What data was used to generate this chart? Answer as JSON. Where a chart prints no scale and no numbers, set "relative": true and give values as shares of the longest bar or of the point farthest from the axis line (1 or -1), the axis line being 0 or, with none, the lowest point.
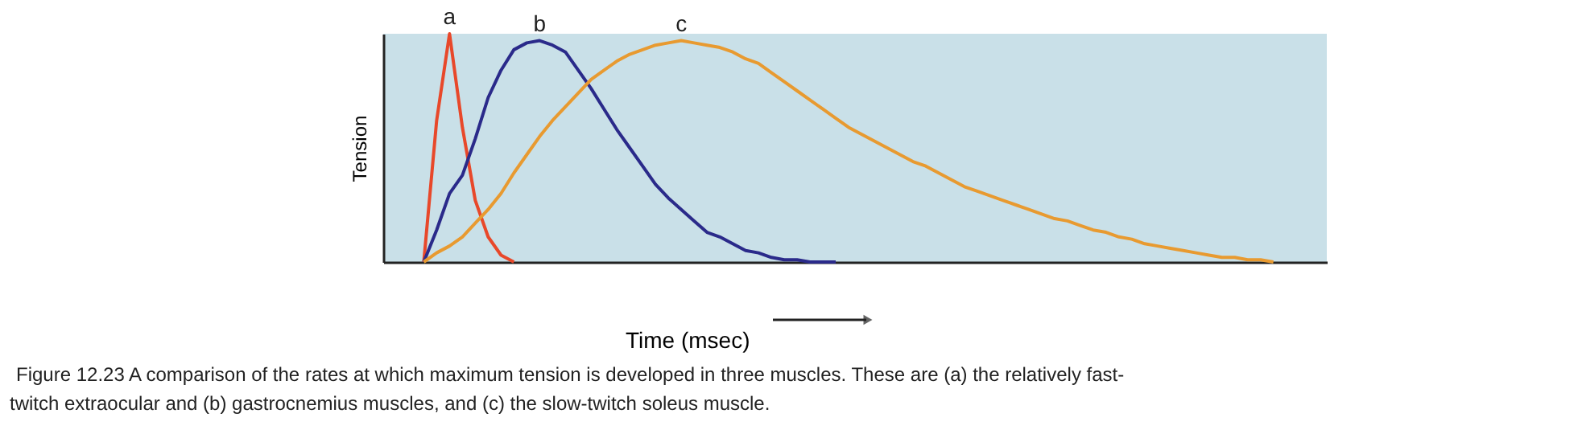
{
  "chart_data": {
    "type": "line",
    "relative": true,
    "xlabel": "Time (msec)",
    "ylabel": "Tension",
    "annotations": [
      "Figure 12.23  A comparison of the rates at which maximum tension is developed in three muscles. These are (a) the relatively fast-twitch extraocular and (b) gastrocnemius muscles, and (c) the slow-twitch soleus muscle."
    ],
    "grid": false,
    "line_style": "solid",
    "marker": "none",
    "categories": [
      null,
      null,
      null,
      null,
      null,
      null,
      null,
      null,
      null,
      null,
      null,
      null,
      null,
      null,
      null,
      null,
      null,
      null,
      null,
      null,
      null,
      null,
      null,
      null,
      null,
      null,
      null,
      null,
      null,
      null,
      null,
      null,
      null,
      null,
      null,
      null,
      null,
      null,
      null,
      null,
      null,
      null,
      null,
      null,
      null,
      null,
      null,
      null,
      null,
      null,
      null,
      null,
      null,
      null,
      null,
      null,
      null,
      null,
      null,
      null,
      null,
      null,
      null,
      null,
      null,
      null,
      null,
      null,
      null,
      null,
      null,
      null,
      null,
      null
    ],
    "series": [
      {
        "name": "a",
        "color": "#e8482a",
        "values": [
          null,
          null,
          null,
          0,
          0.62,
          1.0,
          0.59,
          0.27,
          0.11,
          0.03,
          0,
          null,
          null,
          null,
          null,
          null,
          null,
          null,
          null,
          null,
          null,
          null,
          null,
          null,
          null,
          null,
          null,
          null,
          null,
          null,
          null,
          null,
          null,
          null,
          null,
          null,
          null,
          null,
          null,
          null,
          null,
          null,
          null,
          null,
          null,
          null,
          null,
          null,
          null,
          null,
          null,
          null,
          null,
          null,
          null,
          null,
          null,
          null,
          null,
          null,
          null,
          null,
          null,
          null,
          null,
          null,
          null,
          null,
          null,
          null,
          null,
          null,
          null,
          null
        ]
      },
      {
        "name": "b",
        "color": "#2a2a8a",
        "values": [
          null,
          null,
          null,
          0,
          0.14,
          0.3,
          0.38,
          0.54,
          0.72,
          0.84,
          0.93,
          0.96,
          0.97,
          0.95,
          0.92,
          0.84,
          0.76,
          0.67,
          0.58,
          0.5,
          0.42,
          0.34,
          0.28,
          0.23,
          0.18,
          0.13,
          0.11,
          0.08,
          0.05,
          0.04,
          0.02,
          0.01,
          0.01,
          0,
          0,
          0,
          null,
          null,
          null,
          null,
          null,
          null,
          null,
          null,
          null,
          null,
          null,
          null,
          null,
          null,
          null,
          null,
          null,
          null,
          null,
          null,
          null,
          null,
          null,
          null,
          null,
          null,
          null,
          null,
          null,
          null,
          null,
          null,
          null,
          null,
          null,
          null,
          null,
          null
        ]
      },
      {
        "name": "c",
        "color": "#e89a30",
        "values": [
          null,
          null,
          null,
          0,
          0.04,
          0.07,
          0.11,
          0.17,
          0.23,
          0.3,
          0.39,
          0.47,
          0.55,
          0.62,
          0.68,
          0.74,
          0.8,
          0.84,
          0.88,
          0.91,
          0.93,
          0.95,
          0.96,
          0.97,
          0.96,
          0.95,
          0.94,
          0.92,
          0.89,
          0.87,
          0.83,
          0.79,
          0.75,
          0.71,
          0.67,
          0.63,
          0.59,
          0.56,
          0.53,
          0.5,
          0.47,
          0.44,
          0.42,
          0.39,
          0.36,
          0.33,
          0.31,
          0.29,
          0.27,
          0.25,
          0.23,
          0.21,
          0.19,
          0.18,
          0.16,
          0.14,
          0.13,
          0.11,
          0.1,
          0.08,
          0.07,
          0.06,
          0.05,
          0.04,
          0.03,
          0.02,
          0.02,
          0.01,
          0.01,
          0,
          null,
          null,
          null,
          null
        ]
      }
    ]
  }
}
